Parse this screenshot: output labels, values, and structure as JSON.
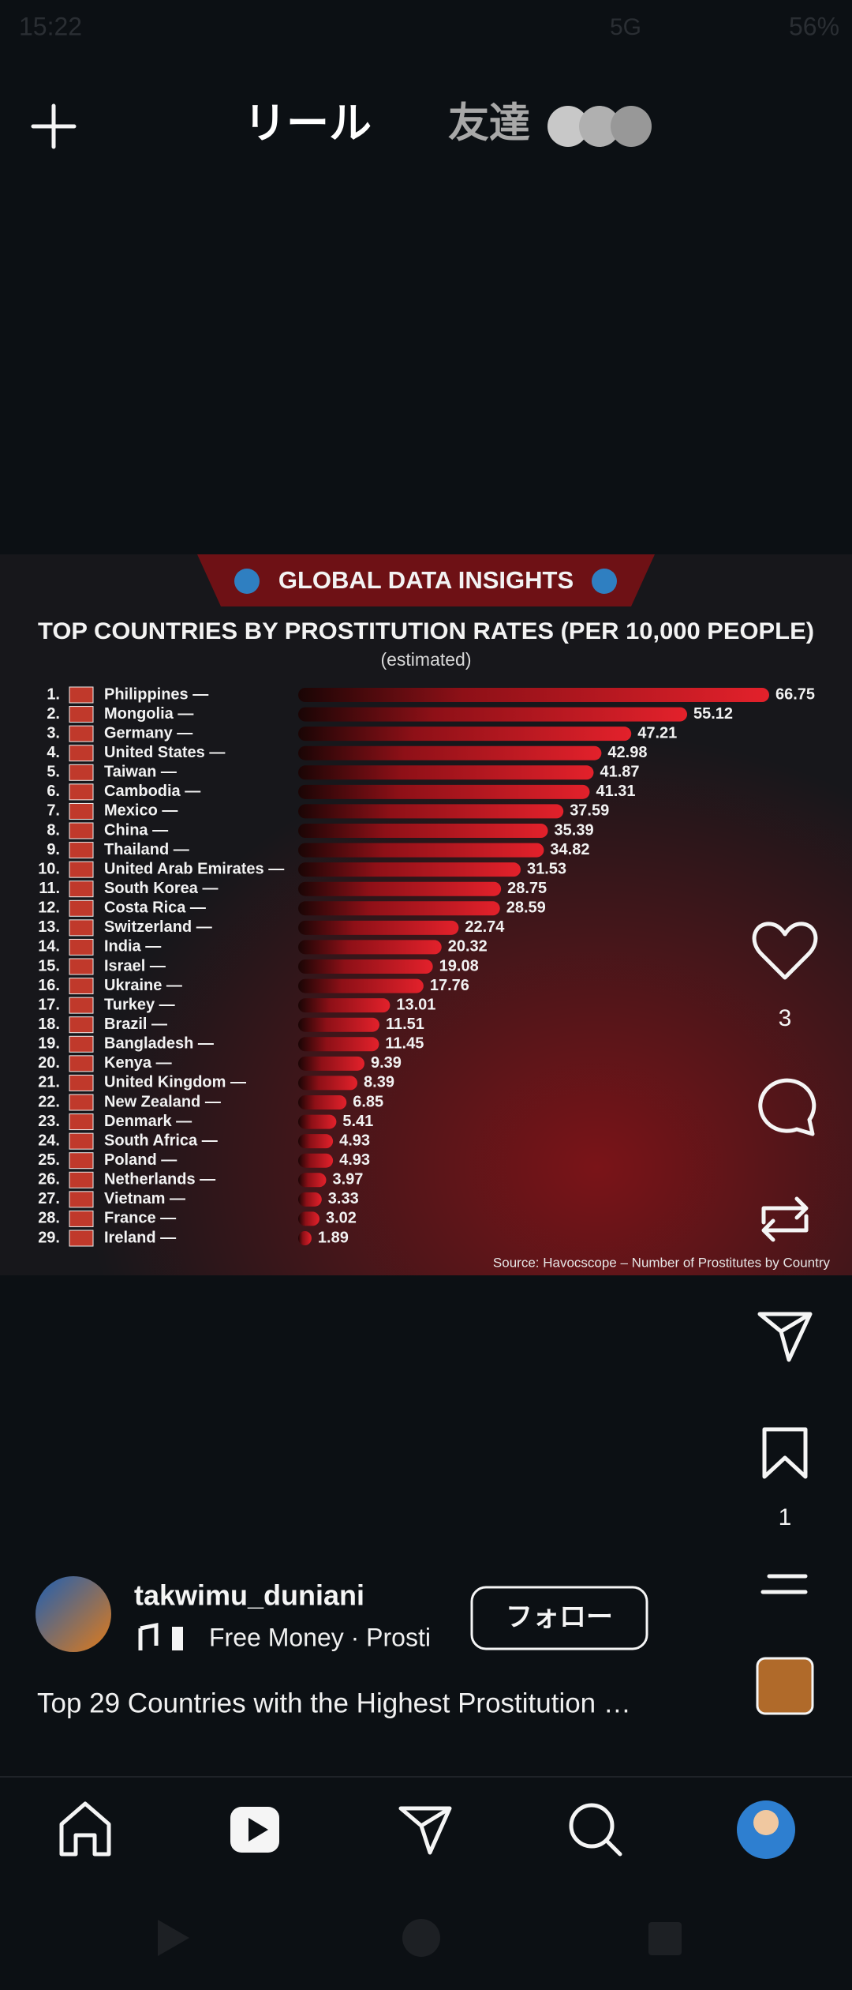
{
  "status": {
    "time": "15:22",
    "network": "5G",
    "battery": "56%"
  },
  "header": {
    "tabs": [
      "リール",
      "友達"
    ]
  },
  "reel": {
    "chart": {
      "banner": "GLOBAL DATA INSIGHTS",
      "title": "TOP COUNTRIES BY PROSTITUTION RATES (PER 10,000 PEOPLE)",
      "subtitle": "(estimated)",
      "rows": [
        {
          "rank": "1.",
          "country": "Philippines —",
          "value": 66.75
        },
        {
          "rank": "2.",
          "country": "Mongolia —",
          "value": 55.12
        },
        {
          "rank": "3.",
          "country": "Germany —",
          "value": 47.21
        },
        {
          "rank": "4.",
          "country": "United States —",
          "value": 42.98
        },
        {
          "rank": "5.",
          "country": "Taiwan —",
          "value": 41.87
        },
        {
          "rank": "6.",
          "country": "Cambodia —",
          "value": 41.31
        },
        {
          "rank": "7.",
          "country": "Mexico —",
          "value": 37.59
        },
        {
          "rank": "8.",
          "country": "China —",
          "value": 35.39
        },
        {
          "rank": "9.",
          "country": "Thailand —",
          "value": 34.82
        },
        {
          "rank": "10.",
          "country": "United Arab Emirates —",
          "value": 31.53
        },
        {
          "rank": "11.",
          "country": "South Korea —",
          "value": 28.75
        },
        {
          "rank": "12.",
          "country": "Costa Rica —",
          "value": 28.59
        },
        {
          "rank": "13.",
          "country": "Switzerland —",
          "value": 22.74
        },
        {
          "rank": "14.",
          "country": "India —",
          "value": 20.32
        },
        {
          "rank": "15.",
          "country": "Israel —",
          "value": 19.08
        },
        {
          "rank": "16.",
          "country": "Ukraine —",
          "value": 17.76
        },
        {
          "rank": "17.",
          "country": "Turkey —",
          "value": 13.01
        },
        {
          "rank": "18.",
          "country": "Brazil —",
          "value": 11.51
        },
        {
          "rank": "19.",
          "country": "Bangladesh —",
          "value": 11.45
        },
        {
          "rank": "20.",
          "country": "Kenya —",
          "value": 9.39
        },
        {
          "rank": "21.",
          "country": "United Kingdom —",
          "value": 8.39
        },
        {
          "rank": "22.",
          "country": "New Zealand —",
          "value": 6.85
        },
        {
          "rank": "23.",
          "country": "Denmark —",
          "value": 5.41
        },
        {
          "rank": "24.",
          "country": "South Africa —",
          "value": 4.93
        },
        {
          "rank": "25.",
          "country": "Poland —",
          "value": 4.93
        },
        {
          "rank": "26.",
          "country": "Netherlands —",
          "value": 3.97
        },
        {
          "rank": "27.",
          "country": "Vietnam —",
          "value": 3.33
        },
        {
          "rank": "28.",
          "country": "France —",
          "value": 3.02
        },
        {
          "rank": "29.",
          "country": "Ireland —",
          "value": 1.89
        }
      ],
      "source": "Source: Havocscope – Number of Prostitutes by Country"
    }
  },
  "actions": {
    "likes": 3,
    "saves": 1
  },
  "user": {
    "username": "takwimu_duniani",
    "music": "Free Money · Prosti",
    "follow": "フォロー",
    "caption": "Top 29 Countries with the Highest Prostitution …"
  }
}
